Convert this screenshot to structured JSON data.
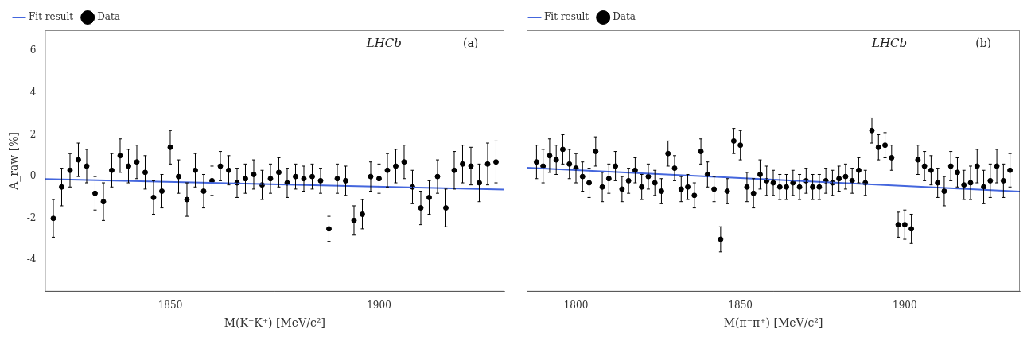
{
  "chart_data": [
    {
      "type": "scatter",
      "xlabel": "M(K⁻K⁺) [MeV/c²]",
      "ylabel": "A_raw [%]",
      "annotations": [
        "LHCb",
        "(a)"
      ],
      "xlim": [
        1820,
        1930
      ],
      "xticks": [
        1850,
        1900
      ],
      "ylim": [
        -5.5,
        7.0
      ],
      "yticks": [
        -4,
        -2,
        0,
        2,
        4,
        6
      ],
      "grid": false,
      "legend": "upper left",
      "series": [
        {
          "name": "Data",
          "type": "scatter",
          "color": "black",
          "marker": "circle",
          "x": [
            1822,
            1824,
            1826,
            1828,
            1830,
            1832,
            1834,
            1836,
            1838,
            1840,
            1842,
            1844,
            1846,
            1848,
            1850,
            1852,
            1854,
            1856,
            1858,
            1860,
            1862,
            1864,
            1866,
            1868,
            1870,
            1872,
            1874,
            1876,
            1878,
            1880,
            1882,
            1884,
            1886,
            1888,
            1890,
            1892,
            1894,
            1896,
            1898,
            1900,
            1902,
            1904,
            1906,
            1908,
            1910,
            1912,
            1914,
            1916,
            1918,
            1920,
            1922,
            1924,
            1926,
            1928
          ],
          "values": [
            -2.0,
            -0.5,
            0.3,
            0.8,
            0.5,
            -0.8,
            -1.2,
            0.3,
            1.0,
            0.5,
            0.7,
            0.2,
            -1.0,
            -0.7,
            1.4,
            0.0,
            -1.1,
            0.3,
            -0.7,
            -0.2,
            0.5,
            0.3,
            -0.3,
            -0.1,
            0.1,
            -0.4,
            -0.1,
            0.2,
            -0.3,
            0.0,
            -0.1,
            0.0,
            -0.2,
            -2.5,
            -0.1,
            -0.2,
            -2.1,
            -1.8,
            0.0,
            -0.1,
            0.3,
            0.5,
            0.7,
            -0.5,
            -1.5,
            -1.0,
            0.0,
            -1.5,
            0.3,
            0.6,
            0.5,
            -0.3,
            0.6,
            0.7
          ],
          "y_err": [
            0.9,
            0.9,
            0.8,
            0.8,
            0.8,
            0.8,
            0.9,
            0.8,
            0.8,
            0.8,
            0.8,
            0.8,
            0.8,
            0.8,
            0.8,
            0.8,
            0.8,
            0.8,
            0.8,
            0.7,
            0.7,
            0.7,
            0.7,
            0.7,
            0.7,
            0.7,
            0.7,
            0.7,
            0.7,
            0.6,
            0.6,
            0.6,
            0.6,
            0.6,
            0.7,
            0.7,
            0.7,
            0.7,
            0.7,
            0.7,
            0.8,
            0.8,
            0.8,
            0.8,
            0.8,
            0.8,
            0.8,
            0.9,
            0.9,
            0.9,
            0.9,
            0.9,
            1.0,
            1.0
          ]
        },
        {
          "name": "Fit result",
          "type": "line",
          "color": "#4466dd",
          "line_style": "solid",
          "x": [
            1820,
            1930
          ],
          "values": [
            -0.12,
            -0.62
          ]
        }
      ]
    },
    {
      "type": "scatter",
      "xlabel": "M(π⁻π⁺) [MeV/c²]",
      "annotations": [
        "LHCb",
        "(b)"
      ],
      "xlim": [
        1785,
        1935
      ],
      "xticks": [
        1800,
        1850,
        1900
      ],
      "ylim": [
        -5.5,
        7.0
      ],
      "yticks": [
        -4,
        -2,
        0,
        2,
        4,
        6
      ],
      "tick_labels": "x",
      "grid": false,
      "legend": "upper left",
      "series": [
        {
          "name": "Data",
          "type": "scatter",
          "color": "black",
          "marker": "circle",
          "x": [
            1788,
            1790,
            1792,
            1794,
            1796,
            1798,
            1800,
            1802,
            1804,
            1806,
            1808,
            1810,
            1812,
            1814,
            1816,
            1818,
            1820,
            1822,
            1824,
            1826,
            1828,
            1830,
            1832,
            1834,
            1836,
            1838,
            1840,
            1842,
            1844,
            1846,
            1848,
            1850,
            1852,
            1854,
            1856,
            1858,
            1860,
            1862,
            1864,
            1866,
            1868,
            1870,
            1872,
            1874,
            1876,
            1878,
            1880,
            1882,
            1884,
            1886,
            1888,
            1890,
            1892,
            1894,
            1896,
            1898,
            1900,
            1902,
            1904,
            1906,
            1908,
            1910,
            1912,
            1914,
            1916,
            1918,
            1920,
            1922,
            1924,
            1926,
            1928,
            1930,
            1932
          ],
          "values": [
            0.7,
            0.5,
            1.0,
            0.8,
            1.3,
            0.6,
            0.4,
            0.0,
            -0.3,
            1.2,
            -0.5,
            -0.1,
            0.5,
            -0.6,
            -0.2,
            0.3,
            -0.5,
            0.0,
            -0.3,
            -0.7,
            1.1,
            0.4,
            -0.6,
            -0.5,
            -0.9,
            1.2,
            0.1,
            -0.6,
            -3.0,
            -0.7,
            1.7,
            1.5,
            -0.5,
            -0.8,
            0.1,
            -0.2,
            -0.3,
            -0.5,
            -0.5,
            -0.3,
            -0.5,
            -0.2,
            -0.5,
            -0.5,
            -0.2,
            -0.3,
            -0.1,
            0.0,
            -0.2,
            0.3,
            -0.3,
            2.2,
            1.4,
            1.5,
            0.9,
            -2.3,
            -2.3,
            -2.5,
            0.8,
            0.5,
            0.3,
            -0.3,
            -0.7,
            0.5,
            0.2,
            -0.4,
            -0.3,
            0.5,
            -0.5,
            -0.2,
            0.5,
            -0.2,
            0.3
          ],
          "y_err": [
            0.8,
            0.8,
            0.8,
            0.7,
            0.7,
            0.7,
            0.7,
            0.7,
            0.7,
            0.7,
            0.7,
            0.7,
            0.7,
            0.6,
            0.6,
            0.6,
            0.6,
            0.6,
            0.6,
            0.6,
            0.6,
            0.6,
            0.6,
            0.6,
            0.6,
            0.6,
            0.6,
            0.6,
            0.6,
            0.6,
            0.6,
            0.7,
            0.7,
            0.7,
            0.7,
            0.7,
            0.6,
            0.6,
            0.6,
            0.6,
            0.6,
            0.6,
            0.6,
            0.6,
            0.6,
            0.6,
            0.6,
            0.6,
            0.6,
            0.6,
            0.6,
            0.6,
            0.6,
            0.6,
            0.6,
            0.6,
            0.7,
            0.7,
            0.7,
            0.7,
            0.7,
            0.7,
            0.7,
            0.7,
            0.7,
            0.7,
            0.8,
            0.8,
            0.8,
            0.8,
            0.8,
            0.8,
            0.8
          ]
        },
        {
          "name": "Fit result",
          "type": "line",
          "color": "#4466dd",
          "line_style": "solid",
          "x": [
            1785,
            1935
          ],
          "values": [
            0.42,
            -0.72
          ]
        }
      ]
    }
  ]
}
